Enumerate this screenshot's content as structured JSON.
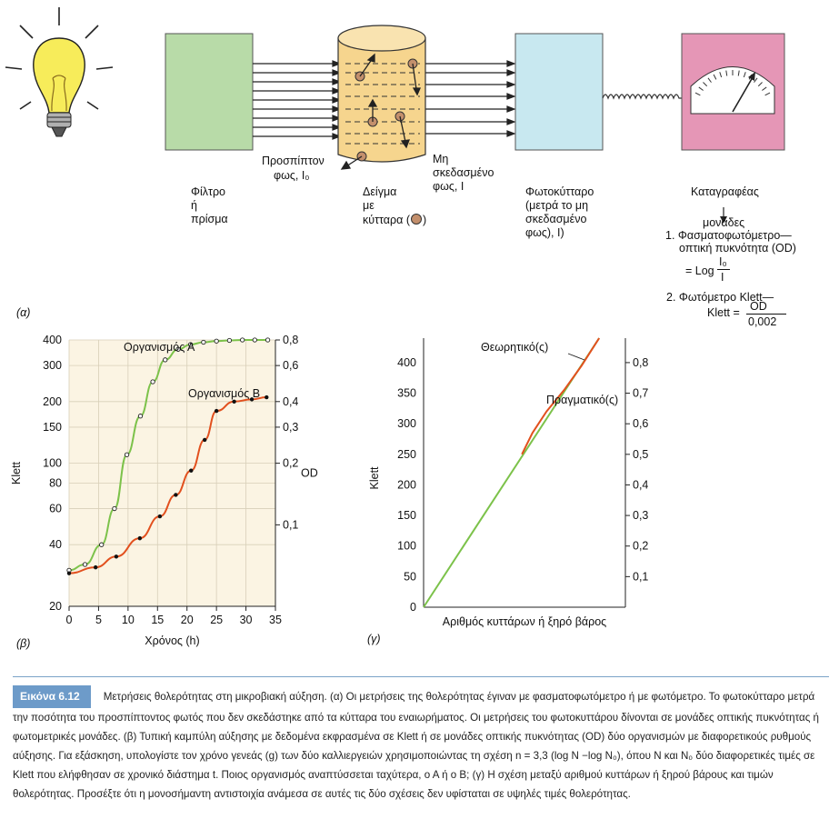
{
  "top": {
    "filter": [
      "Φίλτρο",
      "ή",
      "πρίσμα"
    ],
    "incident": [
      "Προσπίπτον",
      "φως, I₀"
    ],
    "sample": [
      "Δείγμα",
      "με",
      "κύτταρα (",
      ")"
    ],
    "unscattered": [
      "Μη",
      "σκεδασμένο",
      "φως, I"
    ],
    "photocell": [
      "Φωτοκύτταρο",
      "(μετρά το μη",
      "σκεδασμένο",
      "φως), I)"
    ],
    "recorder": "Καταγραφέας",
    "units": "μονάδες",
    "unit1": [
      "1. Φασματοφωτόμετρο—",
      "οπτική πυκνότητα (OD)"
    ],
    "logeq": [
      "= Log",
      "I₀",
      "I"
    ],
    "unit2": [
      "2. Φωτόμετρο Klett—",
      "Klett =",
      "OD",
      "0,002"
    ],
    "panel": "(α)"
  },
  "colors": {
    "filter": "#b8dba8",
    "sample": "#f6d58e",
    "photocell": "#c8e8f0",
    "recorder": "#e596b6",
    "green": "#7cc24a",
    "red": "#e2501e",
    "plot_bg": "#fbf4e3"
  },
  "chart_data": [
    {
      "type": "line",
      "panel": "(β)",
      "xlabel": "Χρόνος (h)",
      "ylabel": "Klett",
      "y2label": "OD",
      "y_scale": "log",
      "xlim": [
        0,
        35
      ],
      "ylim": [
        20,
        400
      ],
      "x_ticks": [
        "0",
        "5",
        "10",
        "15",
        "20",
        "25",
        "30",
        "35"
      ],
      "y_ticks": [
        "20",
        "40",
        "60",
        "80",
        "100",
        "150",
        "200",
        "300",
        "400"
      ],
      "y_tick_values": [
        20,
        40,
        60,
        80,
        100,
        150,
        200,
        300,
        400
      ],
      "y2_ticks": [
        "0,1",
        "0,2",
        "0,3",
        "0,4",
        "0,6",
        "0,8"
      ],
      "y2_tick_values": [
        50,
        100,
        150,
        200,
        300,
        400
      ],
      "grid": true,
      "series": [
        {
          "name": "Οργανισμός Α",
          "color": "#7cc24a",
          "marker": "open-circle",
          "x": [
            0,
            2.7,
            5.5,
            7.7,
            9.8,
            12.1,
            14.2,
            16.3,
            18.5,
            20.6,
            22.8,
            25,
            27.2,
            29.4,
            31.5,
            33.7
          ],
          "y": [
            30,
            32,
            40,
            60,
            110,
            170,
            250,
            320,
            360,
            380,
            390,
            395,
            398,
            400,
            400,
            400
          ]
        },
        {
          "name": "Οργανισμός Β",
          "color": "#e2501e",
          "marker": "filled-circle",
          "x": [
            0,
            4.5,
            8,
            12,
            15.4,
            18.1,
            20.7,
            23,
            25,
            28,
            31,
            33.5
          ],
          "y": [
            29,
            31,
            35,
            43,
            55,
            70,
            92,
            130,
            180,
            200,
            205,
            210
          ]
        }
      ]
    },
    {
      "type": "line",
      "panel": "(γ)",
      "xlabel": "Αριθμός κυττάρων ή ξηρό βάρος",
      "ylabel": "Klett",
      "y2label": "OD",
      "ylim": [
        0,
        440
      ],
      "y_ticks": [
        "0",
        "50",
        "100",
        "150",
        "200",
        "250",
        "300",
        "350",
        "400"
      ],
      "y_tick_values": [
        0,
        50,
        100,
        150,
        200,
        250,
        300,
        350,
        400
      ],
      "y2_ticks": [
        "0,1",
        "0,2",
        "0,3",
        "0,4",
        "0,5",
        "0,6",
        "0,7",
        "0,8"
      ],
      "y2_tick_values": [
        50,
        100,
        150,
        200,
        250,
        300,
        350,
        400
      ],
      "series": [
        {
          "name": "Θεωρητικό(ς)",
          "color": "#7cc24a",
          "x": [
            0,
            1
          ],
          "y": [
            0,
            440
          ]
        },
        {
          "name": "Πραγματικό(ς)",
          "color": "#e2501e",
          "x": [
            0.56,
            0.62,
            0.7,
            0.8,
            0.9,
            1.0
          ],
          "y": [
            250,
            285,
            320,
            355,
            395,
            440
          ]
        }
      ]
    }
  ],
  "caption": {
    "label": "Εικόνα 6.12",
    "text": "Μετρήσεις θολερότητας στη μικροβιακή αύξηση. (α) Οι μετρήσεις της θολερότητας έγιναν με φασματοφωτόμετρο ή με φωτόμετρο. Το φωτοκύτταρο μετρά την ποσότητα του προσπίπτοντος φωτός που δεν σκεδάστηκε από τα κύτταρα του εναιωρήματος. Οι μετρήσεις του φωτοκυττάρου δίνονται σε μονάδες οπτικής πυκνότητας ή φωτομετρικές μονάδες. (β) Τυπική καμπύλη αύξησης με δεδομένα εκφρασμένα σε Klett ή σε μονάδες οπτικής πυκνότητας (OD) δύο οργανισμών με διαφορετικούς ρυθμούς αύξησης. Για εξάσκηση, υπολογίστε τον χρόνο γενεάς (g) των δύο καλλιεργειών χρησιμοποιώντας τη σχέση n = 3,3 (log N −log N₀), όπου N και N₀ δύο διαφορετικές τιμές σε Klett που ελήφθησαν σε χρονικό διάστημα t. Ποιος οργανισμός αναπτύσσεται ταχύτερα, ο Α ή ο Β; (γ) Η σχέση μεταξύ αριθμού κυττάρων ή ξηρού βάρους και τιμών θολερότητας. Προσέξτε ότι η μονοσήμαντη αντιστοιχία ανάμεσα σε αυτές τις δύο σχέσεις δεν υφίσταται σε υψηλές τιμές θολερότητας."
  }
}
